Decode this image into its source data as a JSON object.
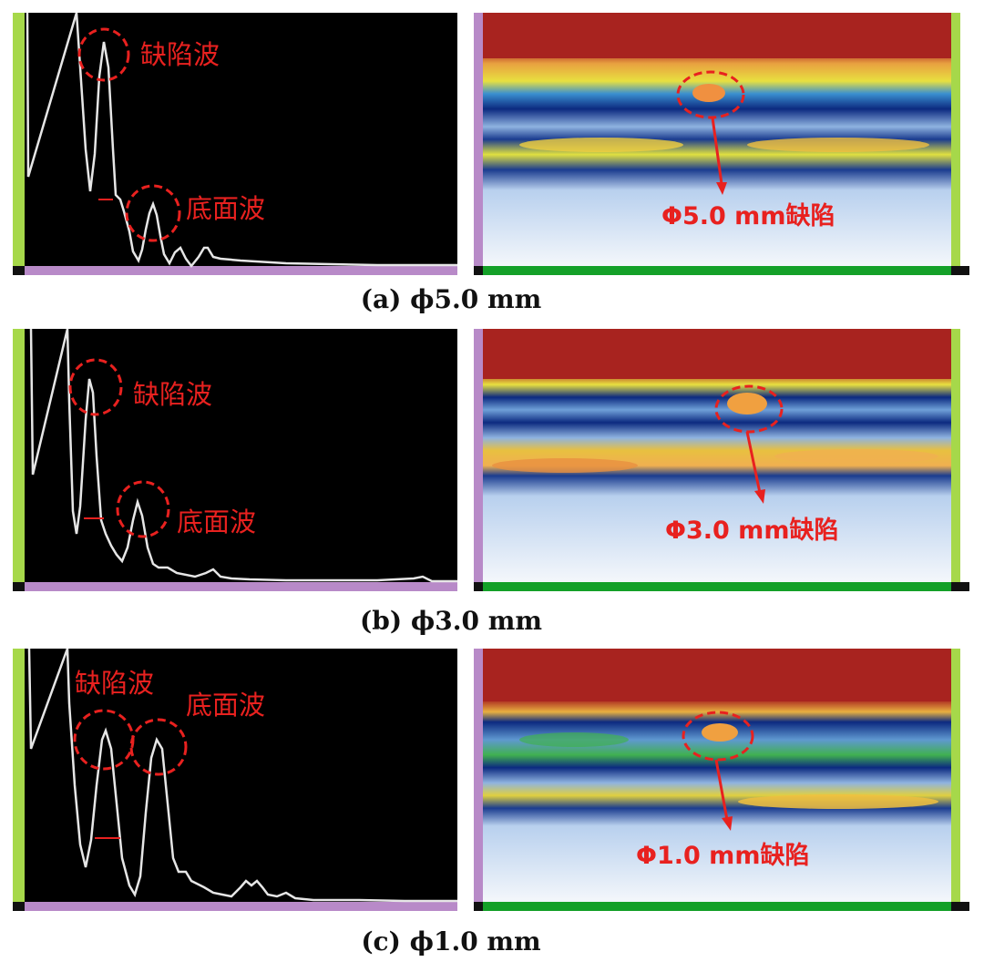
{
  "panels": [
    {
      "id": "a",
      "caption": "(a) ϕ5.0 mm",
      "ascan_labels": {
        "defect_wave": "缺陷波",
        "bottom_wave": "底面波"
      },
      "bscan_label": "Φ5.0 mm缺陷"
    },
    {
      "id": "b",
      "caption": "(b) ϕ3.0 mm",
      "ascan_labels": {
        "defect_wave": "缺陷波",
        "bottom_wave": "底面波"
      },
      "bscan_label": "Φ3.0 mm缺陷"
    },
    {
      "id": "c",
      "caption": "(c) ϕ1.0 mm",
      "ascan_labels": {
        "defect_wave": "缺陷波",
        "bottom_wave": "底面波"
      },
      "bscan_label": "Φ1.0 mm缺陷"
    }
  ],
  "colors": {
    "annotation": "#e8211f",
    "ascan_background": "#000000",
    "ascan_trace": "#e6e6e6",
    "bscan_top": "#a8231f",
    "bscan_bottom": "#f4f7fb",
    "scale_green": "#a6d84a",
    "scale_purple": "#b88ac8",
    "bscan_axis": "#14a028"
  }
}
